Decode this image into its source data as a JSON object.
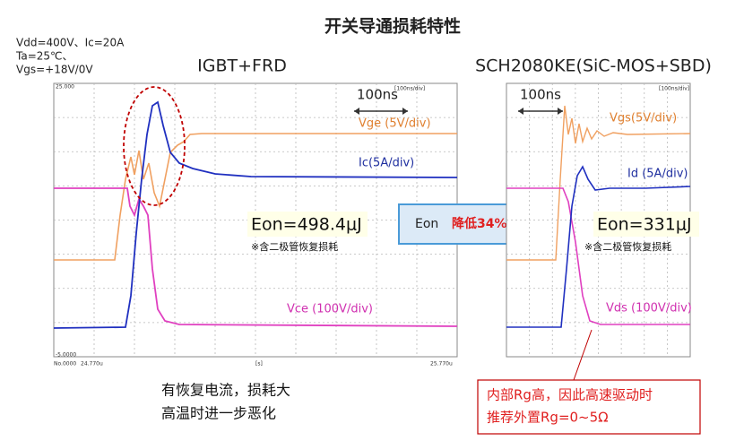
{
  "title": "开关导通损耗特性",
  "conditions": [
    "Vdd=400V、Ic=20A",
    "Ta=25℃、",
    "Vgs=+18V/0V"
  ],
  "panels": [
    {
      "title": "IGBT+FRD",
      "timescale": "100ns",
      "scope_labels": {
        "top": "25.000",
        "bottom": "-5.0000",
        "origin": "No.0000",
        "x_start": "24.770u",
        "x_unit": "[s]",
        "x_end": "25.770u",
        "div": "[100ns/div]"
      },
      "traces": {
        "gate": "Vge (5V/div)",
        "current": "Ic(5A/div)",
        "voltage": "Vce (100V/div)"
      },
      "eon": "Eon=498.4μJ",
      "note": "※含二极管恢复损耗"
    },
    {
      "title": "SCH2080KE(SiC-MOS+SBD)",
      "timescale": "100ns",
      "scope_labels": {
        "div": "[100ns/div]"
      },
      "traces": {
        "gate": "Vgs(5V/div)",
        "current": "Id (5A/div)",
        "voltage": "Vds (100V/div)"
      },
      "eon": "Eon=331μJ",
      "note": "※含二极管恢复损耗"
    }
  ],
  "comparison": {
    "prefix": "Eon",
    "reduction": "降低34%"
  },
  "comments": {
    "left": [
      "有恢复电流，损耗大",
      "高温时进一步恶化"
    ],
    "right": [
      "内部Rg高，因此高速驱动时",
      "推荐外置Rg=0~5Ω"
    ]
  }
}
